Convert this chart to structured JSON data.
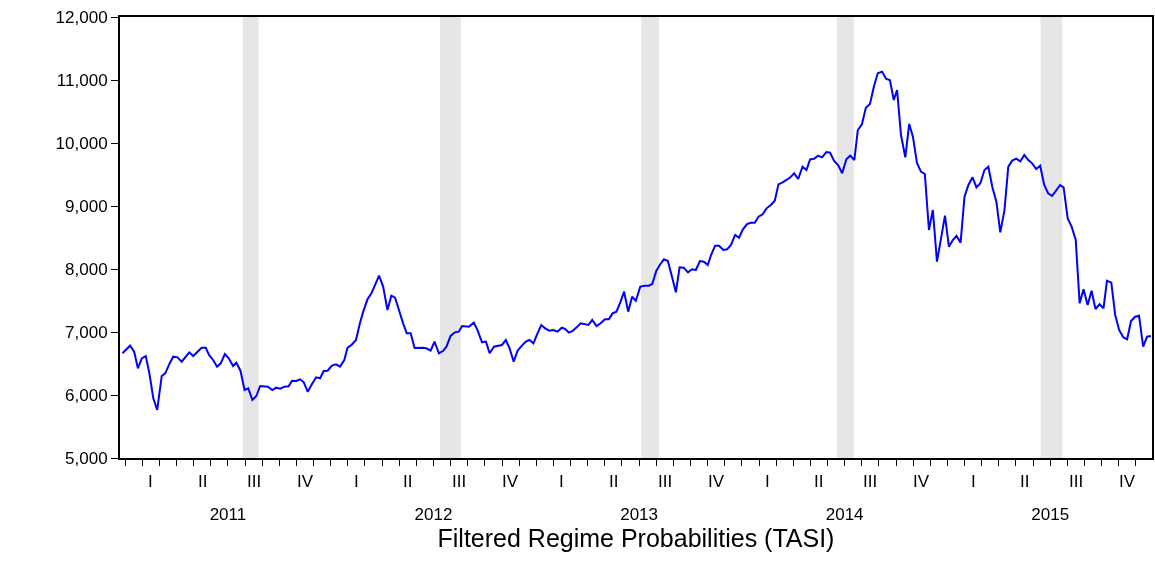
{
  "chart_data": {
    "type": "line",
    "xlabel": "Filtered Regime Probabilities (TASI)",
    "x": [
      2010.987,
      2011.024,
      2011.044,
      2011.062,
      2011.081,
      2011.1,
      2011.118,
      2011.137,
      2011.156,
      2011.178,
      2011.195,
      2011.218,
      2011.234,
      2011.255,
      2011.275,
      2011.312,
      2011.331,
      2011.372,
      2011.392,
      2011.408,
      2011.428,
      2011.447,
      2011.465,
      2011.485,
      2011.504,
      2011.525,
      2011.541,
      2011.561,
      2011.581,
      2011.599,
      2011.619,
      2011.638,
      2011.657,
      2011.694,
      2011.716,
      2011.735,
      2011.754,
      2011.775,
      2011.795,
      2011.812,
      2011.832,
      2011.851,
      2011.869,
      2011.888,
      2011.909,
      2011.929,
      2011.948,
      2011.966,
      2011.985,
      2012.006,
      2012.026,
      2012.045,
      2012.066,
      2012.082,
      2012.101,
      2012.123,
      2012.142,
      2012.158,
      2012.179,
      2012.198,
      2012.219,
      2012.235,
      2012.255,
      2012.276,
      2012.295,
      2012.313,
      2012.332,
      2012.352,
      2012.37,
      2012.389,
      2012.408,
      2012.445,
      2012.465,
      2012.486,
      2012.505,
      2012.526,
      2012.546,
      2012.563,
      2012.583,
      2012.604,
      2012.623,
      2012.639,
      2012.672,
      2012.696,
      2012.715,
      2012.736,
      2012.755,
      2012.773,
      2012.794,
      2012.833,
      2012.852,
      2012.87,
      2012.89,
      2012.909,
      2012.93,
      2012.949,
      2012.967,
      2012.986,
      2013.006,
      2013.024,
      2013.043,
      2013.063,
      2013.083,
      2013.103,
      2013.124,
      2013.14,
      2013.159,
      2013.177,
      2013.196,
      2013.216,
      2013.253,
      2013.272,
      2013.293,
      2013.313,
      2013.334,
      2013.353,
      2013.371,
      2013.39,
      2013.41,
      2013.427,
      2013.447,
      2013.466,
      2013.484,
      2013.506,
      2013.528,
      2013.547,
      2013.564,
      2013.584,
      2013.603,
      2013.621,
      2013.64,
      2013.66,
      2013.679,
      2013.697,
      2013.717,
      2013.738,
      2013.757,
      2013.776,
      2013.796,
      2013.815,
      2013.834,
      2013.85,
      2013.87,
      2013.889,
      2013.91,
      2013.928,
      2013.947,
      2013.967,
      2013.986,
      2014.005,
      2014.025,
      2014.044,
      2014.063,
      2014.081,
      2014.101,
      2014.12,
      2014.141,
      2014.16,
      2014.178,
      2014.198,
      2014.217,
      2014.236,
      2014.254,
      2014.274,
      2014.295,
      2014.314,
      2014.332,
      2014.351,
      2014.371,
      2014.39,
      2014.411,
      2014.429,
      2014.448,
      2014.468,
      2014.488,
      2014.508,
      2014.527,
      2014.547,
      2014.564,
      2014.584,
      2014.603,
      2014.623,
      2014.642,
      2014.661,
      2014.682,
      2014.702,
      2014.72,
      2014.739,
      2014.755,
      2014.774,
      2014.795,
      2014.814,
      2014.832,
      2014.852,
      2014.871,
      2014.89,
      2014.91,
      2014.929,
      2014.949,
      2014.968,
      2014.988,
      2015.007,
      2015.026,
      2015.044,
      2015.064,
      2015.083,
      2015.102,
      2015.122,
      2015.141,
      2015.16,
      2015.18,
      2015.199,
      2015.218,
      2015.238,
      2015.257,
      2015.277,
      2015.296,
      2015.315,
      2015.335,
      2015.354,
      2015.374,
      2015.393,
      2015.412,
      2015.432,
      2015.451,
      2015.47,
      2015.49,
      2015.509,
      2015.528,
      2015.548,
      2015.565,
      2015.585,
      2015.604,
      2015.624,
      2015.643,
      2015.662,
      2015.682,
      2015.701,
      2015.72,
      2015.74,
      2015.759,
      2015.776,
      2015.797,
      2015.816,
      2015.835,
      2015.855,
      2015.874,
      2015.893,
      2015.913,
      2015.932,
      2015.952,
      2015.971,
      2015.99
    ],
    "series": [
      {
        "color": "#0000ff",
        "values": [
          6662,
          6783,
          6687,
          6423,
          6582,
          6619,
          6344,
          5947,
          5762,
          6302,
          6344,
          6513,
          6608,
          6598,
          6529,
          6677,
          6619,
          6751,
          6751,
          6635,
          6556,
          6450,
          6503,
          6651,
          6582,
          6460,
          6513,
          6386,
          6079,
          6106,
          5921,
          5984,
          6143,
          6132,
          6079,
          6116,
          6101,
          6132,
          6138,
          6227,
          6222,
          6249,
          6201,
          6052,
          6175,
          6281,
          6265,
          6381,
          6386,
          6466,
          6487,
          6450,
          6556,
          6751,
          6794,
          6873,
          7138,
          7323,
          7519,
          7614,
          7773,
          7894,
          7720,
          7349,
          7576,
          7545,
          7349,
          7138,
          6979,
          6979,
          6746,
          6751,
          6741,
          6704,
          6847,
          6662,
          6698,
          6767,
          6937,
          6995,
          7005,
          7095,
          7084,
          7148,
          7021,
          6836,
          6847,
          6662,
          6767,
          6794,
          6873,
          6741,
          6529,
          6704,
          6783,
          6847,
          6873,
          6820,
          6979,
          7111,
          7058,
          7021,
          7032,
          7005,
          7069,
          7048,
          6990,
          7016,
          7074,
          7138,
          7111,
          7190,
          7095,
          7138,
          7201,
          7201,
          7296,
          7323,
          7481,
          7640,
          7323,
          7561,
          7497,
          7720,
          7735,
          7735,
          7762,
          7973,
          8075,
          8154,
          8127,
          7878,
          7630,
          8027,
          8021,
          7947,
          7995,
          7984,
          8127,
          8116,
          8063,
          8222,
          8370,
          8370,
          8302,
          8312,
          8381,
          8540,
          8497,
          8630,
          8714,
          8735,
          8735,
          8831,
          8868,
          8963,
          9016,
          9085,
          9344,
          9376,
          9413,
          9455,
          9519,
          9429,
          9624,
          9571,
          9741,
          9751,
          9799,
          9772,
          9857,
          9846,
          9720,
          9651,
          9519,
          9741,
          9799,
          9730,
          10206,
          10296,
          10560,
          10619,
          10894,
          11106,
          11132,
          11016,
          11000,
          10683,
          10841,
          10127,
          9773,
          10302,
          10100,
          9678,
          9545,
          9508,
          8619,
          8937,
          8116,
          8471,
          8846,
          8354,
          8460,
          8524,
          8418,
          9148,
          9333,
          9455,
          9296,
          9360,
          9571,
          9624,
          9307,
          9069,
          8582,
          8926,
          9624,
          9720,
          9751,
          9709,
          9810,
          9730,
          9677,
          9587,
          9640,
          9344,
          9201,
          9159,
          9243,
          9333,
          9296,
          8804,
          8672,
          8460,
          7455,
          7678,
          7429,
          7656,
          7365,
          7440,
          7376,
          7815,
          7783,
          7270,
          7032,
          6915,
          6884,
          7175,
          7243,
          7259,
          6767,
          6926,
          6937
        ]
      }
    ],
    "xlim": [
      2010.975,
      2015.995
    ],
    "annotations": [
      "I",
      "II",
      "III",
      "IV",
      "I",
      "II",
      "III",
      "IV",
      "I",
      "II",
      "III",
      "IV",
      "I",
      "II",
      "III",
      "IV",
      "I",
      "II",
      "III",
      "IV"
    ],
    "xticks": [
      {
        "value": 2011.5,
        "label": "2011"
      },
      {
        "value": 2012.5,
        "label": "2012"
      },
      {
        "value": 2013.5,
        "label": "2013"
      },
      {
        "value": 2014.5,
        "label": "2014"
      },
      {
        "value": 2015.5,
        "label": "2015"
      }
    ],
    "ylim": [
      5000,
      12000
    ],
    "yticks": [
      {
        "value": 5000,
        "label": "5,000"
      },
      {
        "value": 6000,
        "label": "6,000"
      },
      {
        "value": 7000,
        "label": "7,000"
      },
      {
        "value": 8000,
        "label": "8,000"
      },
      {
        "value": 9000,
        "label": "9,000"
      },
      {
        "value": 10000,
        "label": "10,000"
      },
      {
        "value": 11000,
        "label": "11,000"
      },
      {
        "value": 12000,
        "label": "12,000"
      }
    ],
    "bands": [
      {
        "axis": "x",
        "from": 2011.572,
        "to": 2011.649,
        "color": "#e6e6e6"
      },
      {
        "axis": "x",
        "from": 2012.531,
        "to": 2012.633,
        "color": "#e6e6e6"
      },
      {
        "axis": "x",
        "from": 2013.51,
        "to": 2013.597,
        "color": "#e6e6e6"
      },
      {
        "axis": "x",
        "from": 2014.462,
        "to": 2014.544,
        "color": "#e6e6e6"
      },
      {
        "axis": "x",
        "from": 2015.453,
        "to": 2015.559,
        "color": "#e6e6e6"
      }
    ],
    "grid": false,
    "marker": "none",
    "line_style": "solid"
  }
}
